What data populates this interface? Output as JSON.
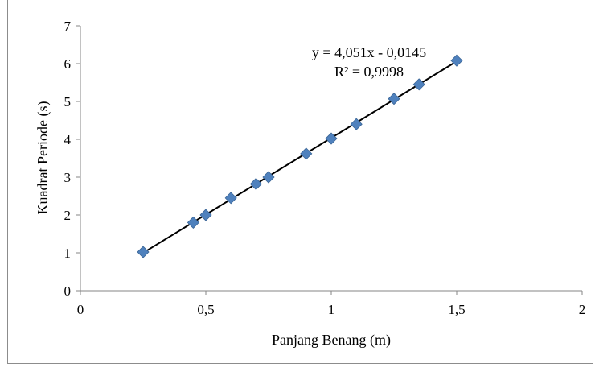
{
  "chart_data": {
    "type": "scatter",
    "xlabel": "Panjang Benang (m)",
    "ylabel": "Kuadrat Periode (s)",
    "xlim": [
      0,
      2
    ],
    "ylim": [
      0,
      7
    ],
    "x_ticks": [
      0,
      0.5,
      1,
      1.5,
      2
    ],
    "y_ticks": [
      0,
      1,
      2,
      3,
      4,
      5,
      6,
      7
    ],
    "x_tick_labels": [
      "0",
      "0,5",
      "1",
      "1,5",
      "2"
    ],
    "y_tick_labels": [
      "0",
      "1",
      "2",
      "3",
      "4",
      "5",
      "6",
      "7"
    ],
    "grid": false,
    "series": [
      {
        "x": [
          0.25,
          0.45,
          0.5,
          0.6,
          0.7,
          0.75,
          0.9,
          1.0,
          1.1,
          1.25,
          1.35,
          1.5
        ],
        "y": [
          1.02,
          1.8,
          2.0,
          2.45,
          2.82,
          3.0,
          3.62,
          4.02,
          4.4,
          5.07,
          5.45,
          6.08
        ],
        "color": "#4f81bd",
        "marker": "diamond"
      }
    ],
    "trendline": {
      "slope": 4.051,
      "intercept": -0.0145,
      "x_range": [
        0.25,
        1.5
      ],
      "color": "#000000"
    },
    "annotations": {
      "equation": "y = 4,051x - 0,0145",
      "r_squared": "R² = 0,9998"
    }
  }
}
